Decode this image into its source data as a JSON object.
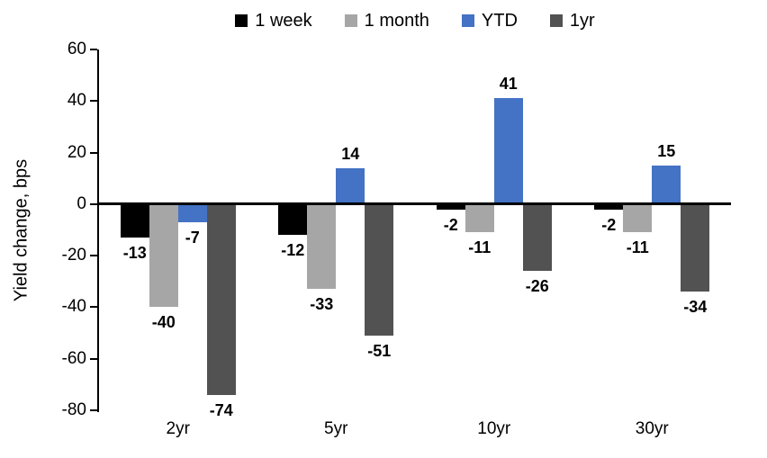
{
  "chart_data": {
    "type": "bar",
    "title": "",
    "ylabel": "Yield change, bps",
    "xlabel": "",
    "categories": [
      "2yr",
      "5yr",
      "10yr",
      "30yr"
    ],
    "series": [
      {
        "name": "1 week",
        "color": "#000000",
        "values": [
          -13,
          -12,
          -2,
          -2
        ]
      },
      {
        "name": "1 month",
        "color": "#A6A6A6",
        "values": [
          -40,
          -33,
          -11,
          -11
        ]
      },
      {
        "name": "YTD",
        "color": "#4472C4",
        "values": [
          -7,
          14,
          41,
          15
        ]
      },
      {
        "name": "1yr",
        "color": "#525252",
        "values": [
          -74,
          -51,
          -26,
          -34
        ]
      }
    ],
    "ylim": [
      -80,
      60
    ],
    "yticks": [
      60,
      40,
      20,
      0,
      -20,
      -40,
      -60,
      -80
    ],
    "legend_position": "top",
    "grid": false,
    "data_labels": true
  }
}
